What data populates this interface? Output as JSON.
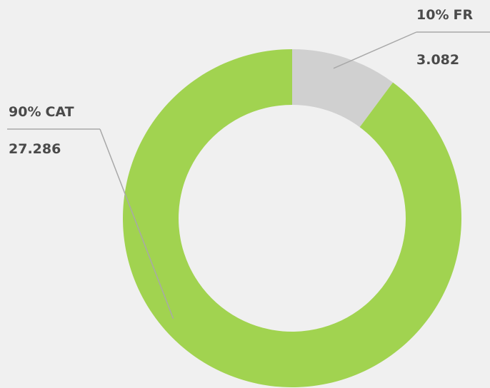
{
  "chart_data": {
    "type": "donut",
    "categories": [
      "CAT",
      "FR"
    ],
    "values": [
      27286,
      3082
    ],
    "value_labels": [
      "27.286",
      "3.082"
    ],
    "percents": [
      90,
      10
    ],
    "percent_labels": [
      "90%",
      "10%"
    ],
    "colors": [
      "#a1d350",
      "#d0d0d0"
    ]
  }
}
